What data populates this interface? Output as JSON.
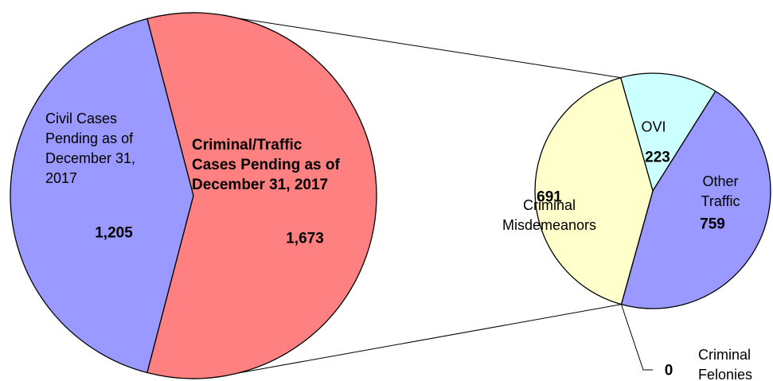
{
  "chart_data": [
    {
      "type": "pie",
      "categories": [
        "Civil Cases\nPending as of\nDecember 31,\n2017",
        "Criminal/Traffic\nCases Pending as of\nDecember 31, 2017"
      ],
      "values": [
        1205,
        1673
      ],
      "value_labels": [
        "1,205",
        "1,673"
      ],
      "colors": [
        "#9999ff",
        "#ff8080"
      ]
    },
    {
      "type": "pie",
      "categories": [
        "OVI",
        "Other\nTraffic",
        "Criminal\nFelonies",
        "Criminal\nMisdemeanors"
      ],
      "values": [
        223,
        759,
        0,
        691
      ],
      "colors": [
        "#ccffff",
        "#9999ff",
        "#ffffff",
        "#ffffcc"
      ]
    }
  ]
}
